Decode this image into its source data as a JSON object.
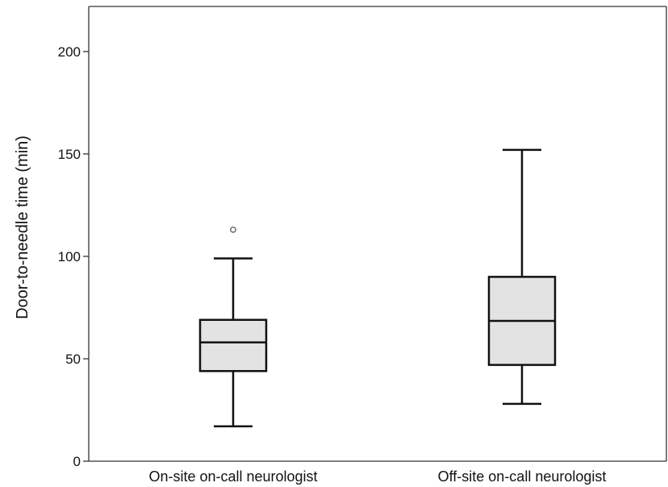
{
  "chart_data": {
    "type": "box",
    "title": "",
    "xlabel": "",
    "ylabel": "Door-to-needle time (min)",
    "ylim": [
      0,
      222
    ],
    "yticks": [
      0,
      50,
      100,
      150,
      200
    ],
    "grid": false,
    "categories": [
      "On-site on-call neurologist",
      "Off-site on-call neurologist"
    ],
    "boxes": [
      {
        "category": "On-site on-call neurologist",
        "whisker_low": 17,
        "q1": 44,
        "median": 58,
        "q3": 69,
        "whisker_high": 99,
        "outliers": [
          113
        ]
      },
      {
        "category": "Off-site on-call neurologist",
        "whisker_low": 28,
        "q1": 47,
        "median": 68.5,
        "q3": 90,
        "whisker_high": 152,
        "outliers": []
      }
    ],
    "colors": {
      "box_fill": "#e3e3e3",
      "box_stroke": "#111111",
      "axis": "#333333",
      "outlier": "#666666"
    }
  }
}
